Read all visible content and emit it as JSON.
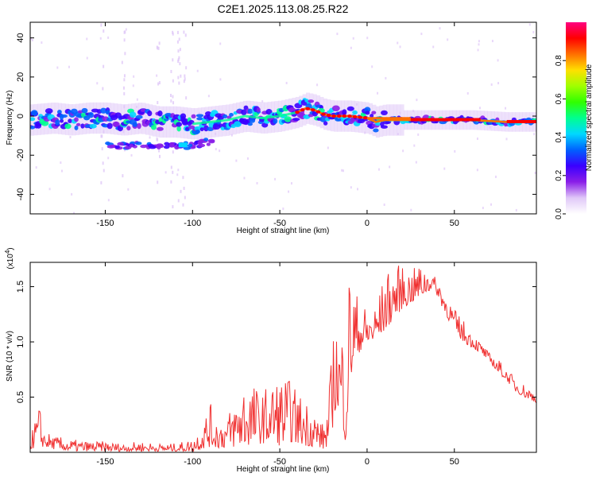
{
  "title": "C2E1.2025.113.08.25.R22",
  "chart_data": [
    {
      "type": "heatmap",
      "xlabel": "Height of straight line (km)",
      "ylabel": "Frequency (Hz)",
      "xlim": [
        -193,
        97
      ],
      "ylim": [
        -50,
        48
      ],
      "xticks": [
        -150,
        -100,
        -50,
        0,
        50
      ],
      "yticks": [
        -40,
        -20,
        0,
        20,
        40
      ],
      "colorbar": {
        "label": "Normalized spectral amplitude",
        "range": [
          0,
          1
        ],
        "ticks": [
          0.0,
          0.2,
          0.4,
          0.6,
          0.8
        ],
        "tick_labels": [
          "0.0",
          "0.2",
          "0.4",
          "0.6",
          "0.8"
        ],
        "colors": [
          "#ffffff",
          "#e0c8f8",
          "#8a1ee8",
          "#3a00ff",
          "#0060ff",
          "#00d8ff",
          "#00ff90",
          "#30ff00",
          "#a0ff00",
          "#ffe000",
          "#ff7000",
          "#ff0000",
          "#ff0080"
        ]
      },
      "ridge": {
        "x": [
          -193,
          -180,
          -170,
          -160,
          -150,
          -140,
          -130,
          -120,
          -110,
          -100,
          -90,
          -80,
          -70,
          -60,
          -50,
          -40,
          -35,
          -30,
          -25,
          -20,
          -10,
          0,
          5,
          10,
          20,
          40,
          60,
          80,
          97
        ],
        "y": [
          -2,
          -1,
          -2,
          -1,
          -1,
          -2,
          -1,
          -3,
          -3,
          -4,
          -3,
          -2,
          0,
          -1,
          0,
          2,
          4,
          3,
          1,
          0,
          0,
          -1,
          -3,
          -2,
          -2,
          -2,
          -2,
          -3,
          -3
        ]
      },
      "secondary_band": {
        "x": [
          -150,
          -140,
          -130,
          -120,
          -110,
          -100,
          -90
        ],
        "y": [
          -15,
          -15,
          -15,
          -15,
          -15,
          -15,
          -13
        ]
      }
    },
    {
      "type": "line",
      "xlabel": "Height of straight line (km)",
      "ylabel": "SNR (10 * v/v)",
      "y_multiplier": "(x10",
      "y_multiplier_exp": "4",
      "y_multiplier_close": ")",
      "xlim": [
        -193,
        97
      ],
      "ylim": [
        0,
        1.72
      ],
      "xticks": [
        -150,
        -100,
        -50,
        0,
        50
      ],
      "yticks": [
        0.5,
        1.0,
        1.5
      ],
      "ytick_labels": [
        "0.5",
        "1.0",
        "1.5"
      ],
      "color": "#f03030",
      "envelope": {
        "x": [
          -193,
          -188,
          -185,
          -180,
          -170,
          -160,
          -150,
          -140,
          -130,
          -120,
          -110,
          -100,
          -95,
          -90,
          -85,
          -80,
          -75,
          -70,
          -60,
          -55,
          -50,
          -45,
          -40,
          -35,
          -30,
          -25,
          -22,
          -20,
          -18,
          -15,
          -12,
          -10,
          -5,
          0,
          5,
          10,
          15,
          20,
          25,
          30,
          35,
          38,
          42,
          45,
          50,
          55,
          60,
          65,
          70,
          75,
          80,
          85,
          90,
          97
        ],
        "low": [
          0.03,
          0.05,
          0.05,
          0.03,
          0.01,
          0.01,
          0.01,
          0.01,
          0.01,
          0.01,
          0.01,
          0.01,
          0.03,
          0.05,
          0.04,
          0.04,
          0.05,
          0.06,
          0.08,
          0.1,
          0.06,
          0.1,
          0.08,
          0.06,
          0.05,
          0.03,
          0.05,
          0.2,
          0.4,
          0.35,
          0.05,
          0.6,
          0.9,
          0.95,
          1.0,
          1.1,
          1.2,
          1.3,
          1.35,
          1.4,
          1.45,
          1.5,
          1.35,
          1.25,
          1.1,
          1.0,
          0.95,
          0.9,
          0.82,
          0.72,
          0.65,
          0.55,
          0.5,
          0.45
        ],
        "high": [
          0.12,
          0.45,
          0.2,
          0.15,
          0.12,
          0.1,
          0.1,
          0.08,
          0.1,
          0.08,
          0.08,
          0.12,
          0.25,
          0.45,
          0.3,
          0.35,
          0.5,
          0.7,
          0.55,
          0.65,
          0.7,
          0.68,
          0.55,
          0.5,
          0.4,
          0.25,
          0.5,
          1.0,
          1.25,
          1.05,
          1.5,
          1.7,
          1.4,
          1.3,
          1.35,
          1.6,
          1.72,
          1.68,
          1.65,
          1.7,
          1.68,
          1.6,
          1.55,
          1.45,
          1.3,
          1.2,
          1.1,
          1.0,
          0.9,
          0.85,
          0.75,
          0.68,
          0.62,
          0.55
        ]
      }
    }
  ]
}
